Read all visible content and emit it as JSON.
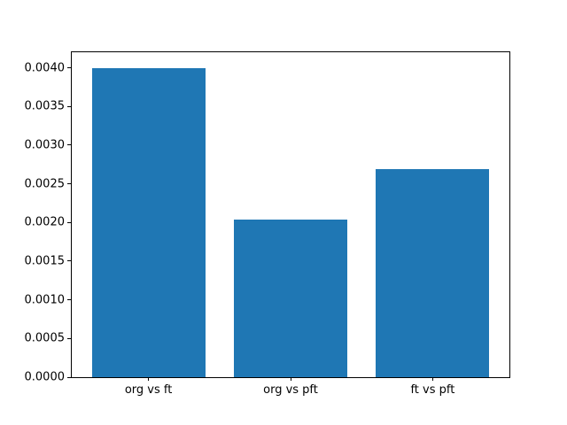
{
  "chart_data": {
    "type": "bar",
    "categories": [
      "org vs ft",
      "org vs pft",
      "ft vs pft"
    ],
    "values": [
      0.004,
      0.00204,
      0.00269
    ],
    "title": "",
    "xlabel": "",
    "ylabel": "",
    "ylim": [
      0,
      0.0042
    ],
    "xlim": [
      -0.54,
      2.54
    ],
    "yticks": [
      0.0,
      0.0005,
      0.001,
      0.0015,
      0.002,
      0.0025,
      0.003,
      0.0035,
      0.004
    ],
    "ytick_decimals": 4,
    "bar_width_fraction": 0.8,
    "bar_color": "#1f77b4",
    "spine_color": "#000000",
    "background_color": "#ffffff",
    "grid": false,
    "legend": null
  }
}
